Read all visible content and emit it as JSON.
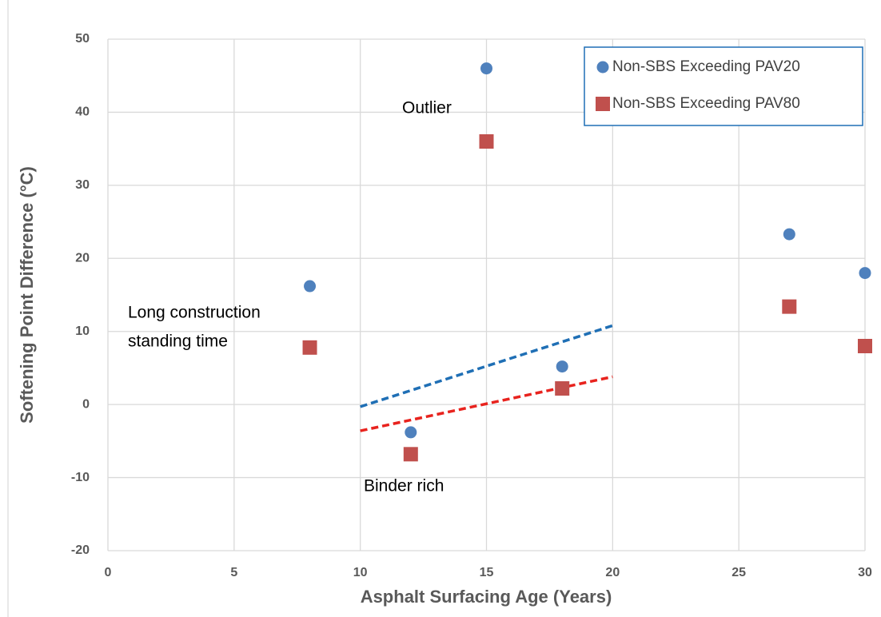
{
  "chart_data": {
    "type": "scatter",
    "xlabel": "Asphalt Surfacing Age (Years)",
    "ylabel": "Softening Point Difference (°C)",
    "xlim": [
      0,
      30
    ],
    "xticks": [
      0,
      5,
      10,
      15,
      20,
      25,
      30
    ],
    "ylim": [
      -20,
      50
    ],
    "yticks": [
      -20,
      -10,
      0,
      10,
      20,
      30,
      40,
      50
    ],
    "grid": true,
    "legend": "upper right",
    "series": [
      {
        "name": "Non-SBS Exceeding PAV20",
        "color": "#4f81bd",
        "marker": "circle",
        "x": [
          8,
          12,
          15,
          18,
          27,
          30
        ],
        "values": [
          16.2,
          -3.8,
          46,
          5.2,
          23.3,
          18
        ]
      },
      {
        "name": "Non-SBS Exceeding PAV80",
        "color": "#c0504d",
        "marker": "square",
        "x": [
          8,
          12,
          15,
          18,
          27,
          30
        ],
        "values": [
          7.8,
          -6.8,
          36,
          2.2,
          13.4,
          8
        ]
      }
    ],
    "trendlines": [
      {
        "color": "#1f6fb5",
        "x": [
          10,
          20
        ],
        "values": [
          -0.3,
          10.8
        ]
      },
      {
        "color": "#e8231e",
        "x": [
          10,
          20
        ],
        "values": [
          -3.6,
          3.8
        ]
      }
    ],
    "annotations": [
      {
        "lines": [
          "Outlier"
        ]
      },
      {
        "lines": [
          "Long construction",
          "standing time"
        ]
      },
      {
        "lines": [
          "Binder rich"
        ]
      }
    ]
  }
}
